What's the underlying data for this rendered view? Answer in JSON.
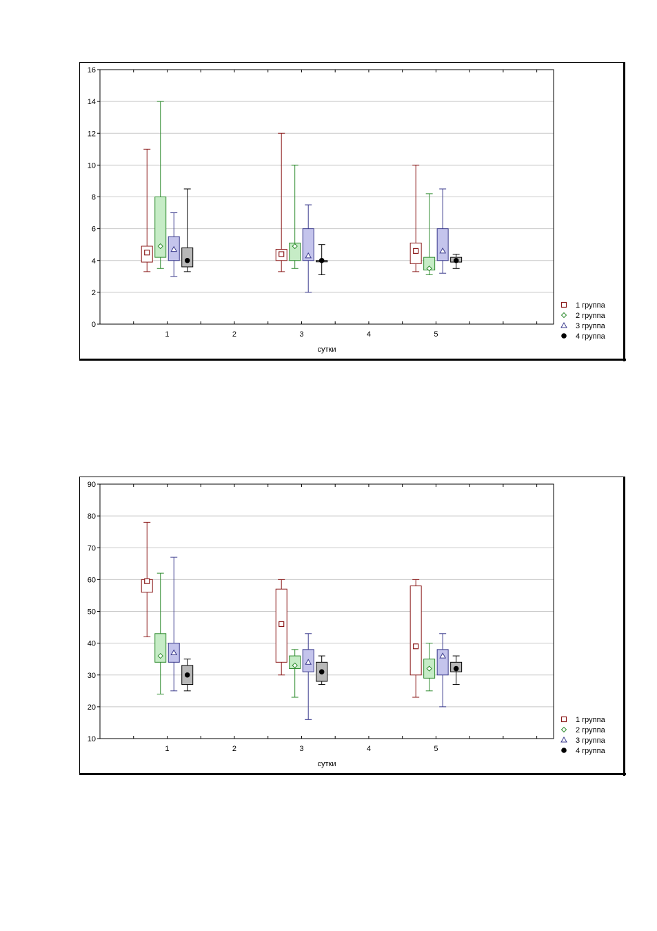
{
  "charts": [
    {
      "xlabel": "сутки",
      "ylim": [
        0,
        16
      ],
      "yticks": [
        0,
        2,
        4,
        6,
        8,
        10,
        12,
        14,
        16
      ],
      "xticks": [
        "1",
        "2",
        "3",
        "4",
        "5"
      ]
    },
    {
      "xlabel": "сутки",
      "ylim": [
        10,
        90
      ],
      "yticks": [
        10,
        20,
        30,
        40,
        50,
        60,
        70,
        80,
        90
      ],
      "xticks": [
        "1",
        "2",
        "3",
        "4",
        "5"
      ]
    }
  ],
  "legend": {
    "placement": "bottom-right",
    "entries": [
      {
        "label": "1 группа",
        "marker": "square",
        "color": "#8b1a1a"
      },
      {
        "label": "2 группа",
        "marker": "diamond",
        "color": "#2e8b2e"
      },
      {
        "label": "3 группа",
        "marker": "triangle",
        "color": "#3a3a8c"
      },
      {
        "label": "4 группа",
        "marker": "filled-circle",
        "color": "#000000"
      }
    ]
  },
  "colors": {
    "g1": {
      "line": "#8b1a1a",
      "fill": "#ffffff"
    },
    "g2": {
      "line": "#2e8b2e",
      "fill": "#c6ecc6"
    },
    "g3": {
      "line": "#3a3a8c",
      "fill": "#c4c4ec"
    },
    "g4": {
      "line": "#000000",
      "fill": "#b8b8b8"
    },
    "grid": "#c8c8c8"
  },
  "chart_data": [
    {
      "type": "box",
      "xlabel": "сутки",
      "ylabel": "",
      "ylim": [
        0,
        16
      ],
      "grid": true,
      "x_categories": [
        1,
        3,
        5
      ],
      "series": [
        {
          "name": "1 группа",
          "boxes": [
            {
              "x": 1,
              "min": 3.3,
              "q1": 3.9,
              "median": 4.5,
              "q3": 4.9,
              "max": 11
            },
            {
              "x": 3,
              "min": 3.3,
              "q1": 4.0,
              "median": 4.4,
              "q3": 4.7,
              "max": 12
            },
            {
              "x": 5,
              "min": 3.3,
              "q1": 3.8,
              "median": 4.6,
              "q3": 5.1,
              "max": 10
            }
          ]
        },
        {
          "name": "2 группа",
          "boxes": [
            {
              "x": 1,
              "min": 3.5,
              "q1": 4.2,
              "median": 4.9,
              "q3": 8,
              "max": 14
            },
            {
              "x": 3,
              "min": 3.5,
              "q1": 4.0,
              "median": 4.9,
              "q3": 5.1,
              "max": 10
            },
            {
              "x": 5,
              "min": 3.1,
              "q1": 3.4,
              "median": 3.5,
              "q3": 4.2,
              "max": 8.2
            }
          ]
        },
        {
          "name": "3 группа",
          "boxes": [
            {
              "x": 1,
              "min": 3.0,
              "q1": 4.0,
              "median": 4.7,
              "q3": 5.5,
              "max": 7
            },
            {
              "x": 3,
              "min": 2.0,
              "q1": 4.0,
              "median": 4.3,
              "q3": 6,
              "max": 7.5
            },
            {
              "x": 5,
              "min": 3.2,
              "q1": 4.0,
              "median": 4.6,
              "q3": 6,
              "max": 8.5
            }
          ]
        },
        {
          "name": "4 группа",
          "boxes": [
            {
              "x": 1,
              "min": 3.3,
              "q1": 3.6,
              "median": 4.0,
              "q3": 4.8,
              "max": 8.5
            },
            {
              "x": 3,
              "min": 3.1,
              "q1": 4.0,
              "median": 4.0,
              "q3": 4.0,
              "max": 5
            },
            {
              "x": 5,
              "min": 3.5,
              "q1": 3.9,
              "median": 4.0,
              "q3": 4.2,
              "max": 4.4
            }
          ]
        }
      ]
    },
    {
      "type": "box",
      "xlabel": "сутки",
      "ylabel": "",
      "ylim": [
        10,
        90
      ],
      "grid": true,
      "x_categories": [
        1,
        3,
        5
      ],
      "series": [
        {
          "name": "1 группа",
          "boxes": [
            {
              "x": 1,
              "min": 42,
              "q1": 56,
              "median": 59.5,
              "q3": 60,
              "max": 78
            },
            {
              "x": 3,
              "min": 30,
              "q1": 34,
              "median": 46,
              "q3": 57,
              "max": 60
            },
            {
              "x": 5,
              "min": 23,
              "q1": 30,
              "median": 39,
              "q3": 58,
              "max": 60
            }
          ]
        },
        {
          "name": "2 группа",
          "boxes": [
            {
              "x": 1,
              "min": 24,
              "q1": 34,
              "median": 36,
              "q3": 43,
              "max": 62
            },
            {
              "x": 3,
              "min": 23,
              "q1": 32,
              "median": 33,
              "q3": 36,
              "max": 38
            },
            {
              "x": 5,
              "min": 25,
              "q1": 29,
              "median": 32,
              "q3": 35,
              "max": 40
            }
          ]
        },
        {
          "name": "3 группа",
          "boxes": [
            {
              "x": 1,
              "min": 25,
              "q1": 34,
              "median": 37,
              "q3": 40,
              "max": 67
            },
            {
              "x": 3,
              "min": 16,
              "q1": 31,
              "median": 34,
              "q3": 38,
              "max": 43
            },
            {
              "x": 5,
              "min": 20,
              "q1": 30,
              "median": 36,
              "q3": 38,
              "max": 43
            }
          ]
        },
        {
          "name": "4 группа",
          "boxes": [
            {
              "x": 1,
              "min": 25,
              "q1": 27,
              "median": 30,
              "q3": 33,
              "max": 35
            },
            {
              "x": 3,
              "min": 27,
              "q1": 28,
              "median": 31,
              "q3": 34,
              "max": 36
            },
            {
              "x": 5,
              "min": 27,
              "q1": 31,
              "median": 32,
              "q3": 34,
              "max": 36
            }
          ]
        }
      ]
    }
  ]
}
